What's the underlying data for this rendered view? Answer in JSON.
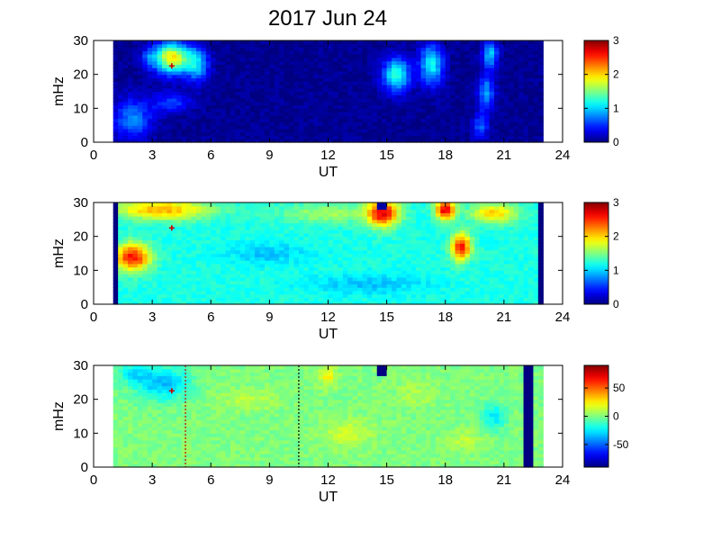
{
  "chart_data": [
    {
      "type": "heatmap",
      "title": "2017 Jun 24",
      "xlabel": "UT",
      "ylabel": "mHz",
      "xlim": [
        0,
        24
      ],
      "ylim": [
        0,
        30
      ],
      "xticks": [
        "0",
        "3",
        "6",
        "9",
        "12",
        "15",
        "18",
        "21",
        "24"
      ],
      "yticks": [
        "0",
        "10",
        "20",
        "30"
      ],
      "data_xrange": [
        1,
        23
      ],
      "colorbar": {
        "range": [
          0,
          3
        ],
        "ticks": [
          "0",
          "1",
          "2",
          "3"
        ]
      },
      "colormap": "jet",
      "background_value": 0.05,
      "features": [
        {
          "x": 4.0,
          "y": 25,
          "sx": 0.9,
          "sy": 4.5,
          "v": 1.9
        },
        {
          "x": 5.3,
          "y": 23,
          "sx": 0.6,
          "sy": 5,
          "v": 0.9
        },
        {
          "x": 4.0,
          "y": 12,
          "sx": 1.0,
          "sy": 3,
          "v": 0.5
        },
        {
          "x": 2.0,
          "y": 7,
          "sx": 1.0,
          "sy": 6,
          "v": 0.7
        },
        {
          "x": 2.8,
          "y": 25,
          "sx": 0.4,
          "sy": 3,
          "v": 0.4
        },
        {
          "x": 15.5,
          "y": 20,
          "sx": 0.7,
          "sy": 5,
          "v": 1.2
        },
        {
          "x": 17.3,
          "y": 23,
          "sx": 0.6,
          "sy": 6,
          "v": 1.1
        },
        {
          "x": 20.3,
          "y": 26,
          "sx": 0.4,
          "sy": 4,
          "v": 0.9
        },
        {
          "x": 20.1,
          "y": 15,
          "sx": 0.4,
          "sy": 5,
          "v": 0.8
        },
        {
          "x": 19.8,
          "y": 5,
          "sx": 0.4,
          "sy": 4,
          "v": 0.6
        }
      ],
      "marker": {
        "x": 4.0,
        "y": 22.5,
        "color": "#cc0000"
      }
    },
    {
      "type": "heatmap",
      "xlabel": "UT",
      "ylabel": "mHz",
      "xlim": [
        0,
        24
      ],
      "ylim": [
        0,
        30
      ],
      "xticks": [
        "0",
        "3",
        "6",
        "9",
        "12",
        "15",
        "18",
        "21",
        "24"
      ],
      "yticks": [
        "0",
        "10",
        "20",
        "30"
      ],
      "data_xrange": [
        1,
        23
      ],
      "colorbar": {
        "range": [
          0,
          3
        ],
        "ticks": [
          "0",
          "1",
          "2",
          "3"
        ]
      },
      "colormap": "jet",
      "background_value": 1.2,
      "features": [
        {
          "x": 3.5,
          "y": 28,
          "sx": 2.5,
          "sy": 3,
          "v": 0.9
        },
        {
          "x": 2.0,
          "y": 14,
          "sx": 0.9,
          "sy": 4,
          "v": 1.4
        },
        {
          "x": 14.8,
          "y": 27,
          "sx": 0.8,
          "sy": 4,
          "v": 1.4
        },
        {
          "x": 18.0,
          "y": 28,
          "sx": 0.5,
          "sy": 3,
          "v": 1.5
        },
        {
          "x": 18.8,
          "y": 17,
          "sx": 0.5,
          "sy": 4,
          "v": 1.4
        },
        {
          "x": 20.5,
          "y": 27,
          "sx": 1.2,
          "sy": 3,
          "v": 0.8
        },
        {
          "x": 12.0,
          "y": 27,
          "sx": 2.5,
          "sy": 3,
          "v": 0.4
        },
        {
          "x": 9.0,
          "y": 15,
          "sx": 2.0,
          "sy": 3,
          "v": -0.25
        },
        {
          "x": 14.0,
          "y": 6,
          "sx": 3.0,
          "sy": 3,
          "v": -0.25
        }
      ],
      "edge_columns": [
        {
          "x": 1.0,
          "width": 0.3,
          "value": 0.0
        },
        {
          "x": 23.0,
          "width": 0.3,
          "value": 0.0
        }
      ],
      "dark_spots": [
        {
          "x": 14.8,
          "y": 29,
          "w": 0.5,
          "h": 2.5,
          "value": 0.1
        }
      ],
      "marker": {
        "x": 4.0,
        "y": 22.5,
        "color": "#cc0000"
      }
    },
    {
      "type": "heatmap",
      "xlabel": "UT",
      "ylabel": "mHz",
      "xlim": [
        0,
        24
      ],
      "ylim": [
        0,
        30
      ],
      "xticks": [
        "0",
        "3",
        "6",
        "9",
        "12",
        "15",
        "18",
        "21",
        "24"
      ],
      "yticks": [
        "0",
        "10",
        "20",
        "30"
      ],
      "data_xrange": [
        1,
        23
      ],
      "colorbar": {
        "range": [
          -90,
          90
        ],
        "ticks": [
          "50",
          "0",
          "-50"
        ],
        "tick_values": [
          50,
          0,
          -50
        ]
      },
      "colormap": "jet",
      "background_value": 0,
      "features": [
        {
          "x": 3.5,
          "y": 25,
          "sx": 1.4,
          "sy": 5,
          "v": -35
        },
        {
          "x": 2.0,
          "y": 28,
          "sx": 0.8,
          "sy": 3,
          "v": -20
        },
        {
          "x": 12.0,
          "y": 27,
          "sx": 0.4,
          "sy": 3,
          "v": 25
        },
        {
          "x": 13.0,
          "y": 10,
          "sx": 1.2,
          "sy": 4,
          "v": 15
        },
        {
          "x": 20.5,
          "y": 15,
          "sx": 0.6,
          "sy": 4,
          "v": -25
        },
        {
          "x": 8.0,
          "y": 20,
          "sx": 1.5,
          "sy": 3,
          "v": 10
        },
        {
          "x": 16.5,
          "y": 22,
          "sx": 1.0,
          "sy": 4,
          "v": 8
        },
        {
          "x": 19.0,
          "y": 8,
          "sx": 0.8,
          "sy": 3,
          "v": 12
        }
      ],
      "edge_columns": [
        {
          "x": 22.3,
          "width": 0.25,
          "value": -90
        }
      ],
      "dark_spots": [
        {
          "x": 14.8,
          "y": 28.5,
          "w": 0.4,
          "h": 3,
          "value": -90
        }
      ],
      "dashed_lines": [
        {
          "x": 4.7,
          "color": "#cc0000"
        },
        {
          "x": 10.5,
          "color": "#000000"
        }
      ],
      "marker": {
        "x": 4.0,
        "y": 22.5,
        "color": "#cc0000"
      }
    }
  ]
}
